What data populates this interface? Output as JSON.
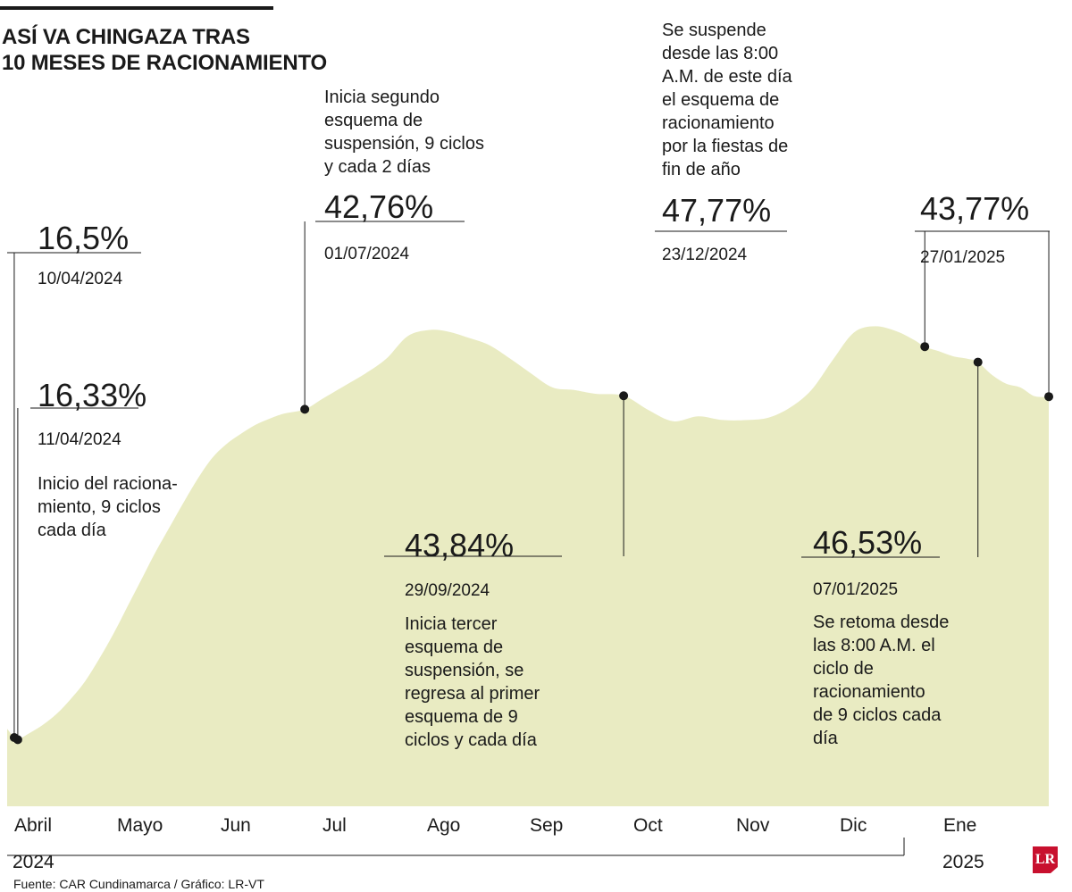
{
  "title_lines": [
    "ASÍ VA CHINGAZA TRAS",
    "10 MESES DE RACIONAMIENTO"
  ],
  "source": "Fuente: CAR Cundinamarca / Gráfico: LR-VT",
  "logo_text": "LR",
  "colors": {
    "area": "#e9ebc2",
    "text": "#1a1a1a",
    "logo": "#c8102e"
  },
  "chart_data": {
    "type": "area",
    "title": "ASÍ VA CHINGAZA TRAS 10 MESES DE RACIONAMIENTO",
    "xlabel": "",
    "ylabel": "",
    "x_range": [
      "2024-04-08",
      "2025-01-28"
    ],
    "ylim": [
      0,
      60
    ],
    "grid": false,
    "x_ticks": [
      "Abril",
      "Mayo",
      "Jun",
      "Jul",
      "Ago",
      "Sep",
      "Oct",
      "Nov",
      "Dic",
      "Ene"
    ],
    "year_labels": [
      "2024",
      "2025"
    ],
    "series": [
      {
        "x": [
          "2024-04-08",
          "2024-04-10",
          "2024-04-11",
          "2024-04-14",
          "2024-04-18",
          "2024-04-22",
          "2024-04-26",
          "2024-04-30",
          "2024-05-04",
          "2024-05-08",
          "2024-05-12",
          "2024-05-16",
          "2024-05-20",
          "2024-05-24",
          "2024-05-28",
          "2024-06-01",
          "2024-06-05",
          "2024-06-09",
          "2024-06-13",
          "2024-06-17",
          "2024-06-21",
          "2024-06-25",
          "2024-07-01",
          "2024-07-06",
          "2024-07-12",
          "2024-07-18",
          "2024-07-24",
          "2024-07-30",
          "2024-08-05",
          "2024-08-10",
          "2024-08-16",
          "2024-08-22",
          "2024-08-28",
          "2024-09-03",
          "2024-09-09",
          "2024-09-15",
          "2024-09-21",
          "2024-09-29",
          "2024-10-06",
          "2024-10-13",
          "2024-10-20",
          "2024-10-27",
          "2024-11-03",
          "2024-11-09",
          "2024-11-15",
          "2024-11-21",
          "2024-11-27",
          "2024-12-03",
          "2024-12-09",
          "2024-12-15",
          "2024-12-20",
          "2024-12-23",
          "2024-12-27",
          "2024-12-31",
          "2025-01-04",
          "2025-01-07",
          "2025-01-11",
          "2025-01-15",
          "2025-01-19",
          "2025-01-23",
          "2025-01-27"
        ],
        "values": [
          17.2,
          16.5,
          16.33,
          16.8,
          17.5,
          18.4,
          19.6,
          21.0,
          22.8,
          24.8,
          27.0,
          29.2,
          31.4,
          33.4,
          35.4,
          37.3,
          38.9,
          40.0,
          40.8,
          41.5,
          42.0,
          42.4,
          42.76,
          43.6,
          44.6,
          45.6,
          46.8,
          48.6,
          49.1,
          49.0,
          48.5,
          47.9,
          46.8,
          45.6,
          44.5,
          44.3,
          44.0,
          43.84,
          42.7,
          41.8,
          42.2,
          41.9,
          41.9,
          42.1,
          42.9,
          44.3,
          46.7,
          48.9,
          49.4,
          49.0,
          48.3,
          47.77,
          47.4,
          47.0,
          46.8,
          46.53,
          45.5,
          44.8,
          44.5,
          43.8,
          43.77
        ]
      }
    ],
    "annotations": [
      {
        "value": "16,5%",
        "date": "10/04/2024"
      },
      {
        "value": "16,33%",
        "date": "11/04/2024",
        "text": [
          "Inicio del raciona-",
          "miento, 9 ciclos",
          "cada día"
        ]
      },
      {
        "value": "42,76%",
        "date": "01/07/2024",
        "text": [
          "Inicia segundo",
          "esquema de",
          "suspensión, 9 ciclos",
          "y cada 2 días"
        ]
      },
      {
        "value": "43,84%",
        "date": "29/09/2024",
        "text": [
          "Inicia tercer",
          "esquema de",
          "suspensión, se",
          "regresa al primer",
          "esquema de 9",
          "ciclos y cada día"
        ]
      },
      {
        "value": "47,77%",
        "date": "23/12/2024",
        "text": [
          "Se suspende",
          "desde las 8:00",
          "A.M. de este día",
          "el esquema de",
          "racionamiento",
          "por la fiestas de",
          "fin de año"
        ]
      },
      {
        "value": "46,53%",
        "date": "07/01/2025",
        "text": [
          "Se retoma desde",
          "las 8:00 A.M. el",
          "ciclo de",
          "racionamiento",
          "de 9 ciclos cada",
          "día"
        ]
      },
      {
        "value": "43,77%",
        "date": "27/01/2025"
      }
    ]
  }
}
